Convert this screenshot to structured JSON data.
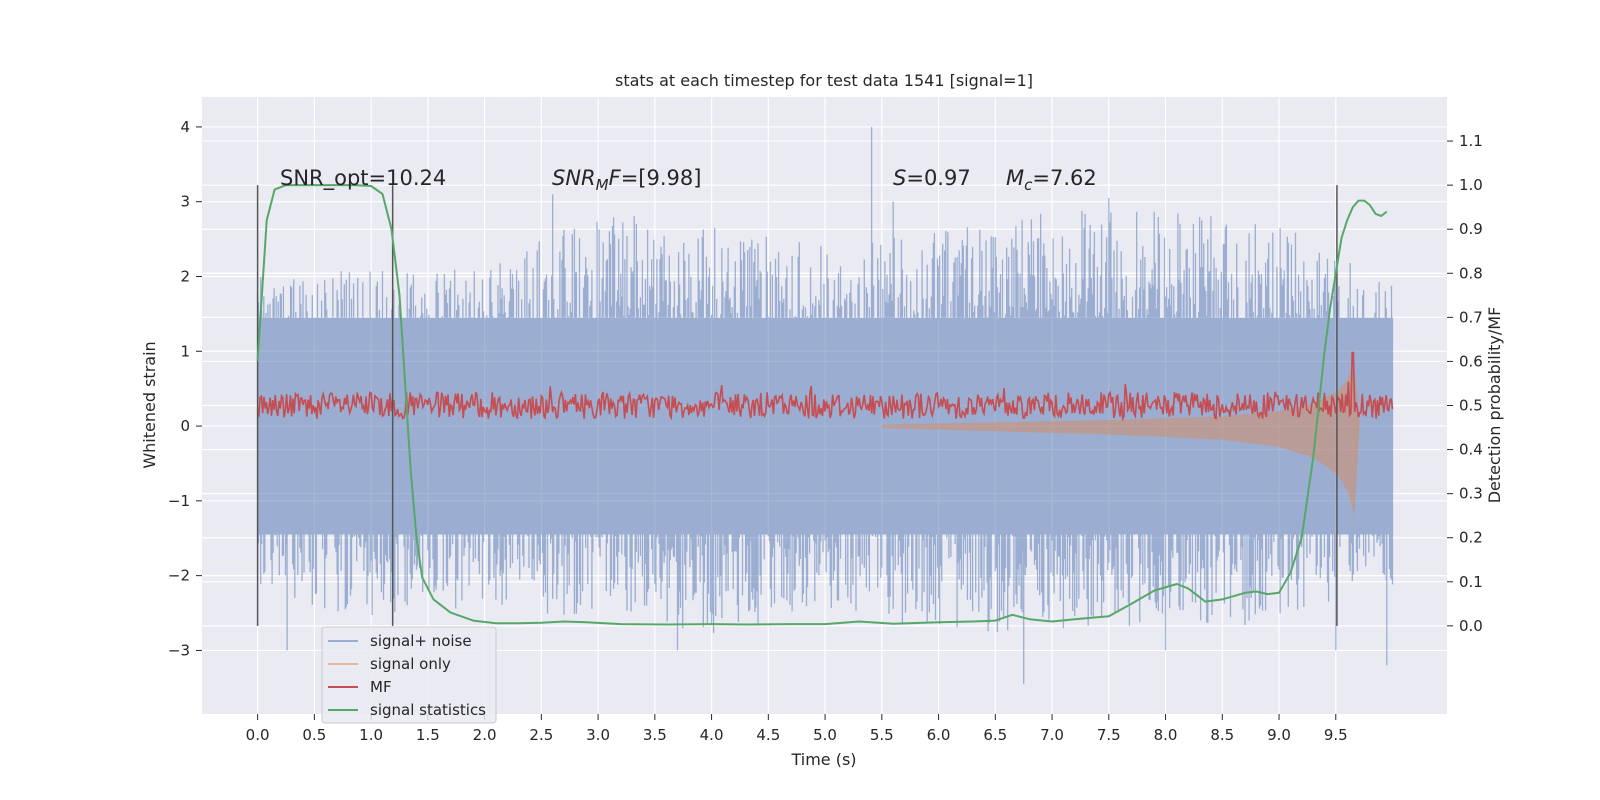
{
  "chart_data": {
    "type": "line",
    "title": "stats at each timestep for test data 1541 [signal=1]",
    "xlabel": "Time (s)",
    "ylabel_left": "Whitened strain",
    "ylabel_right": "Detection probability/MF",
    "xlim": [
      -0.49,
      10.48
    ],
    "ylim_left": [
      -3.85,
      4.4
    ],
    "ylim_right": [
      -0.2,
      1.2
    ],
    "x_ticks": [
      "0.0",
      "0.5",
      "1.0",
      "1.5",
      "2.0",
      "2.5",
      "3.0",
      "3.5",
      "4.0",
      "4.5",
      "5.0",
      "5.5",
      "6.0",
      "6.5",
      "7.0",
      "7.5",
      "8.0",
      "8.5",
      "9.0",
      "9.5"
    ],
    "y_left_ticks": [
      "4",
      "3",
      "2",
      "1",
      "0",
      "−1",
      "−2",
      "−3"
    ],
    "y_right_ticks": [
      "1.1",
      "1.0",
      "0.9",
      "0.8",
      "0.7",
      "0.6",
      "0.5",
      "0.4",
      "0.3",
      "0.2",
      "0.1",
      "0.0"
    ],
    "grid": true,
    "legend_position": "lower-left",
    "annotations": {
      "snr_opt": "SNR_opt=10.24",
      "snr_mf_sym": "SNR",
      "snr_mf_sub": "M",
      "snr_mf_sym2": "F",
      "snr_mf_val": "=[9.98]",
      "s_sym": "S",
      "s_val": "=0.97",
      "mc_sym": "M",
      "mc_sub": "c",
      "mc_val": "=7.62"
    },
    "vertical_markers": [
      0.0,
      1.19,
      9.51
    ],
    "series": [
      {
        "name": "signal+ noise",
        "color": "#4c72b0",
        "axis": "left",
        "envelope": {
          "x": [
            0.0,
            1.0,
            2.0,
            3.0,
            4.0,
            5.0,
            6.0,
            7.0,
            8.0,
            9.0,
            10.0
          ],
          "upper": [
            2.0,
            2.1,
            2.1,
            2.9,
            2.7,
            2.4,
            2.6,
            2.9,
            2.9,
            2.7,
            2.0
          ],
          "lower": [
            -2.2,
            -2.6,
            -2.4,
            -2.6,
            -2.8,
            -2.5,
            -2.7,
            -2.9,
            -2.6,
            -2.7,
            -2.2
          ]
        },
        "peaks": [
          [
            0.26,
            -3.0
          ],
          [
            2.6,
            3.1
          ],
          [
            3.7,
            -3.0
          ],
          [
            5.41,
            4.0
          ],
          [
            5.6,
            3.0
          ],
          [
            6.75,
            -3.45
          ],
          [
            7.5,
            3.05
          ],
          [
            8.0,
            -3.0
          ],
          [
            9.5,
            -3.0
          ],
          [
            9.95,
            -3.2
          ]
        ]
      },
      {
        "name": "signal only",
        "color": "#dd8452",
        "axis": "left",
        "envelope": {
          "x": [
            5.5,
            6.5,
            7.5,
            8.5,
            9.0,
            9.3,
            9.5,
            9.6,
            9.66
          ],
          "amplitude": [
            0.02,
            0.05,
            0.08,
            0.13,
            0.2,
            0.3,
            0.45,
            0.6,
            0.85
          ]
        }
      },
      {
        "name": "MF",
        "color": "#c44e52",
        "axis": "right",
        "level": 0.5,
        "spread": 0.03,
        "peak": [
          9.65,
          0.62
        ]
      },
      {
        "name": "signal statistics",
        "color": "#55a868",
        "axis": "right",
        "x": [
          0.0,
          0.08,
          0.15,
          0.25,
          0.4,
          0.6,
          0.85,
          1.0,
          1.1,
          1.18,
          1.25,
          1.3,
          1.35,
          1.4,
          1.45,
          1.55,
          1.7,
          1.9,
          2.1,
          2.3,
          2.5,
          2.7,
          2.9,
          3.2,
          3.6,
          4.0,
          4.3,
          4.7,
          5.0,
          5.3,
          5.6,
          6.0,
          6.3,
          6.5,
          6.65,
          6.8,
          7.0,
          7.2,
          7.5,
          7.7,
          7.9,
          8.1,
          8.2,
          8.35,
          8.5,
          8.7,
          8.8,
          8.9,
          9.0,
          9.1,
          9.2,
          9.3,
          9.35,
          9.4,
          9.45,
          9.5,
          9.55,
          9.6,
          9.65,
          9.7,
          9.75,
          9.8,
          9.85,
          9.9,
          9.95
        ],
        "y": [
          0.6,
          0.92,
          0.99,
          1.0,
          1.0,
          1.0,
          1.0,
          0.998,
          0.98,
          0.9,
          0.75,
          0.55,
          0.35,
          0.2,
          0.11,
          0.06,
          0.03,
          0.012,
          0.006,
          0.006,
          0.007,
          0.01,
          0.008,
          0.004,
          0.003,
          0.004,
          0.003,
          0.004,
          0.004,
          0.01,
          0.005,
          0.008,
          0.01,
          0.012,
          0.025,
          0.015,
          0.01,
          0.015,
          0.022,
          0.05,
          0.08,
          0.095,
          0.085,
          0.055,
          0.06,
          0.075,
          0.078,
          0.072,
          0.075,
          0.12,
          0.2,
          0.38,
          0.5,
          0.62,
          0.72,
          0.8,
          0.88,
          0.92,
          0.95,
          0.965,
          0.965,
          0.955,
          0.935,
          0.93,
          0.94
        ]
      }
    ]
  }
}
